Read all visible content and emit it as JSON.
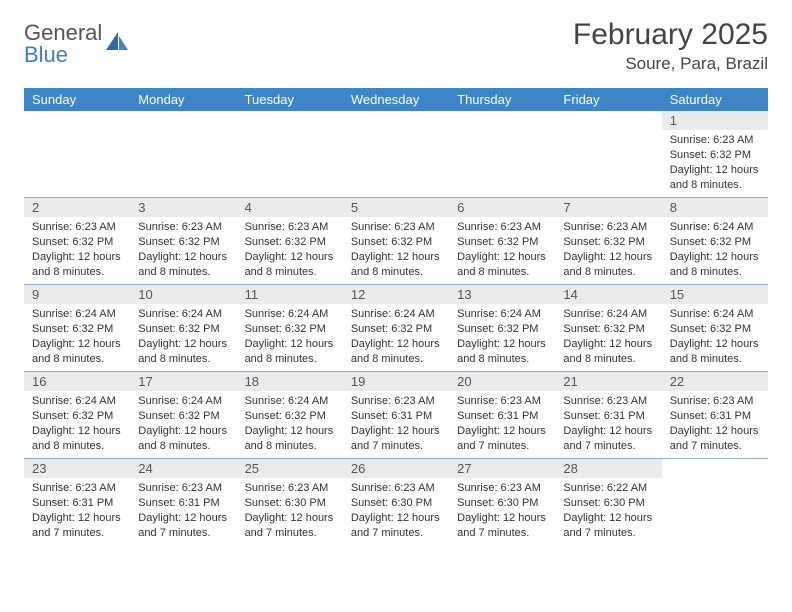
{
  "logo": {
    "line1": "General",
    "line2": "Blue"
  },
  "title": "February 2025",
  "location": "Soure, Para, Brazil",
  "colors": {
    "header_bg": "#3d85c6",
    "header_text": "#ffffff",
    "daynum_bg": "#e9ebed",
    "week_border": "#8faac2",
    "logo_gray": "#555555",
    "logo_blue": "#3d7fbf"
  },
  "day_names": [
    "Sunday",
    "Monday",
    "Tuesday",
    "Wednesday",
    "Thursday",
    "Friday",
    "Saturday"
  ],
  "weeks": [
    [
      {
        "empty": true
      },
      {
        "empty": true
      },
      {
        "empty": true
      },
      {
        "empty": true
      },
      {
        "empty": true
      },
      {
        "empty": true
      },
      {
        "n": "1",
        "sr": "6:23 AM",
        "ss": "6:32 PM",
        "dl": "12 hours and 8 minutes."
      }
    ],
    [
      {
        "n": "2",
        "sr": "6:23 AM",
        "ss": "6:32 PM",
        "dl": "12 hours and 8 minutes."
      },
      {
        "n": "3",
        "sr": "6:23 AM",
        "ss": "6:32 PM",
        "dl": "12 hours and 8 minutes."
      },
      {
        "n": "4",
        "sr": "6:23 AM",
        "ss": "6:32 PM",
        "dl": "12 hours and 8 minutes."
      },
      {
        "n": "5",
        "sr": "6:23 AM",
        "ss": "6:32 PM",
        "dl": "12 hours and 8 minutes."
      },
      {
        "n": "6",
        "sr": "6:23 AM",
        "ss": "6:32 PM",
        "dl": "12 hours and 8 minutes."
      },
      {
        "n": "7",
        "sr": "6:23 AM",
        "ss": "6:32 PM",
        "dl": "12 hours and 8 minutes."
      },
      {
        "n": "8",
        "sr": "6:24 AM",
        "ss": "6:32 PM",
        "dl": "12 hours and 8 minutes."
      }
    ],
    [
      {
        "n": "9",
        "sr": "6:24 AM",
        "ss": "6:32 PM",
        "dl": "12 hours and 8 minutes."
      },
      {
        "n": "10",
        "sr": "6:24 AM",
        "ss": "6:32 PM",
        "dl": "12 hours and 8 minutes."
      },
      {
        "n": "11",
        "sr": "6:24 AM",
        "ss": "6:32 PM",
        "dl": "12 hours and 8 minutes."
      },
      {
        "n": "12",
        "sr": "6:24 AM",
        "ss": "6:32 PM",
        "dl": "12 hours and 8 minutes."
      },
      {
        "n": "13",
        "sr": "6:24 AM",
        "ss": "6:32 PM",
        "dl": "12 hours and 8 minutes."
      },
      {
        "n": "14",
        "sr": "6:24 AM",
        "ss": "6:32 PM",
        "dl": "12 hours and 8 minutes."
      },
      {
        "n": "15",
        "sr": "6:24 AM",
        "ss": "6:32 PM",
        "dl": "12 hours and 8 minutes."
      }
    ],
    [
      {
        "n": "16",
        "sr": "6:24 AM",
        "ss": "6:32 PM",
        "dl": "12 hours and 8 minutes."
      },
      {
        "n": "17",
        "sr": "6:24 AM",
        "ss": "6:32 PM",
        "dl": "12 hours and 8 minutes."
      },
      {
        "n": "18",
        "sr": "6:24 AM",
        "ss": "6:32 PM",
        "dl": "12 hours and 8 minutes."
      },
      {
        "n": "19",
        "sr": "6:23 AM",
        "ss": "6:31 PM",
        "dl": "12 hours and 7 minutes."
      },
      {
        "n": "20",
        "sr": "6:23 AM",
        "ss": "6:31 PM",
        "dl": "12 hours and 7 minutes."
      },
      {
        "n": "21",
        "sr": "6:23 AM",
        "ss": "6:31 PM",
        "dl": "12 hours and 7 minutes."
      },
      {
        "n": "22",
        "sr": "6:23 AM",
        "ss": "6:31 PM",
        "dl": "12 hours and 7 minutes."
      }
    ],
    [
      {
        "n": "23",
        "sr": "6:23 AM",
        "ss": "6:31 PM",
        "dl": "12 hours and 7 minutes."
      },
      {
        "n": "24",
        "sr": "6:23 AM",
        "ss": "6:31 PM",
        "dl": "12 hours and 7 minutes."
      },
      {
        "n": "25",
        "sr": "6:23 AM",
        "ss": "6:30 PM",
        "dl": "12 hours and 7 minutes."
      },
      {
        "n": "26",
        "sr": "6:23 AM",
        "ss": "6:30 PM",
        "dl": "12 hours and 7 minutes."
      },
      {
        "n": "27",
        "sr": "6:23 AM",
        "ss": "6:30 PM",
        "dl": "12 hours and 7 minutes."
      },
      {
        "n": "28",
        "sr": "6:22 AM",
        "ss": "6:30 PM",
        "dl": "12 hours and 7 minutes."
      },
      {
        "empty": true
      }
    ]
  ],
  "labels": {
    "sunrise": "Sunrise:",
    "sunset": "Sunset:",
    "daylight": "Daylight:"
  }
}
